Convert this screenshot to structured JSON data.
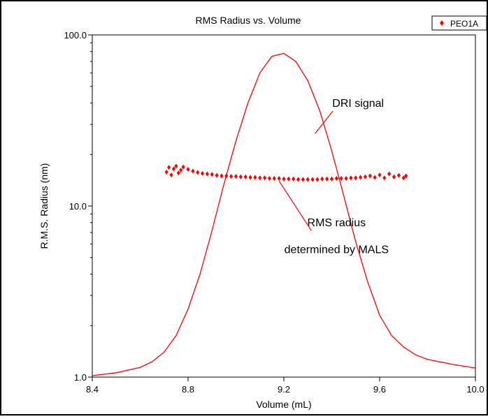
{
  "chart_data": {
    "type": "scatter",
    "title": "RMS Radius vs. Volume",
    "xlabel": "Volume (mL)",
    "ylabel": "R.M.S. Radius (nm)",
    "xlim": [
      8.4,
      10.0
    ],
    "ylim": [
      1.0,
      100.0
    ],
    "yscale": "log",
    "grid": false,
    "legend_position": "top-right",
    "x_ticks": [
      8.4,
      8.8,
      9.2,
      9.6,
      10.0
    ],
    "x_tick_labels": [
      "8.4",
      "8.8",
      "9.2",
      "9.6",
      "10.0"
    ],
    "y_ticks": [
      1.0,
      10.0,
      100.0
    ],
    "y_tick_labels": [
      "1.0",
      "10.0",
      "100.0"
    ],
    "series": [
      {
        "name": "PEO1A",
        "type": "scatter",
        "color": "#ff0000",
        "marker": "diamond",
        "x": [
          8.71,
          8.72,
          8.73,
          8.74,
          8.75,
          8.76,
          8.77,
          8.78,
          8.8,
          8.82,
          8.84,
          8.86,
          8.88,
          8.9,
          8.92,
          8.94,
          8.96,
          8.98,
          9.0,
          9.02,
          9.04,
          9.06,
          9.08,
          9.1,
          9.12,
          9.14,
          9.16,
          9.18,
          9.2,
          9.22,
          9.24,
          9.26,
          9.28,
          9.3,
          9.32,
          9.34,
          9.36,
          9.38,
          9.4,
          9.42,
          9.44,
          9.46,
          9.48,
          9.5,
          9.52,
          9.54,
          9.56,
          9.58,
          9.6,
          9.62,
          9.64,
          9.66,
          9.68,
          9.7,
          9.71
        ],
        "y": [
          15.8,
          16.8,
          15.2,
          16.5,
          17.1,
          15.6,
          16.2,
          16.9,
          16.4,
          16.0,
          15.7,
          15.5,
          15.4,
          15.3,
          15.1,
          15.0,
          15.0,
          14.9,
          14.9,
          14.8,
          14.8,
          14.7,
          14.7,
          14.6,
          14.6,
          14.5,
          14.5,
          14.5,
          14.4,
          14.4,
          14.4,
          14.3,
          14.3,
          14.3,
          14.3,
          14.3,
          14.4,
          14.4,
          14.4,
          14.5,
          14.5,
          14.5,
          14.6,
          14.6,
          14.7,
          14.8,
          15.0,
          14.7,
          15.2,
          14.6,
          15.4,
          14.8,
          15.1,
          14.6,
          15.0
        ]
      },
      {
        "type": "line",
        "color": "#ff0000",
        "x": [
          8.4,
          8.5,
          8.6,
          8.65,
          8.7,
          8.75,
          8.8,
          8.85,
          8.9,
          8.95,
          9.0,
          9.05,
          9.1,
          9.15,
          9.2,
          9.25,
          9.3,
          9.35,
          9.4,
          9.45,
          9.5,
          9.55,
          9.6,
          9.65,
          9.7,
          9.75,
          9.8,
          9.9,
          10.0
        ],
        "y": [
          1.02,
          1.06,
          1.14,
          1.23,
          1.4,
          1.75,
          2.5,
          4.0,
          7.2,
          13.5,
          24.0,
          40.0,
          60.0,
          75.0,
          78.0,
          70.0,
          54.0,
          36.0,
          21.0,
          11.5,
          6.2,
          3.6,
          2.3,
          1.75,
          1.5,
          1.35,
          1.27,
          1.19,
          1.13
        ]
      }
    ],
    "annotations": [
      {
        "text": "DRI signal",
        "x": 9.51,
        "y": 38.0,
        "arrow_to": [
          9.33,
          26.5
        ]
      },
      {
        "text": "RMS radius",
        "x": 9.42,
        "y": 7.6,
        "arrow_to": [
          9.18,
          14.0
        ]
      },
      {
        "text": "determined by MALS",
        "x": 9.42,
        "y": 5.3
      }
    ]
  }
}
